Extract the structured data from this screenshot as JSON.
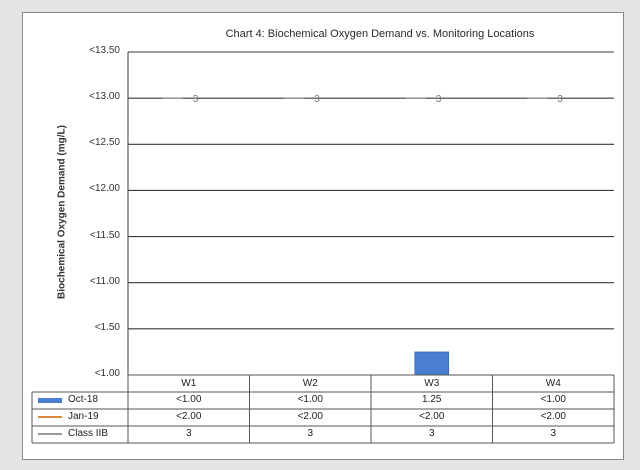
{
  "colors": {
    "oct": "#4a7fcf",
    "jan": "#d98a3a",
    "class": "#9a9a9a",
    "grid": "#3a3a3a"
  },
  "chart_data": {
    "type": "bar",
    "title": "Chart 4: Biochemical Oxygen Demand vs. Monitoring Locations",
    "ylabel": "Biochemical Oxygen Demand (mg/L)",
    "y_tick_labels": [
      "<13.50",
      "<13.00",
      "<12.50",
      "<12.00",
      "<11.50",
      "<11.00",
      "<1.50",
      "<1.00"
    ],
    "categories": [
      "W1",
      "W2",
      "W3",
      "W4"
    ],
    "series": [
      {
        "name": "Oct-18",
        "kind": "bar",
        "values": [
          null,
          null,
          1.25,
          null
        ],
        "labels": [
          "<1.00",
          "<1.00",
          "1.25",
          "<1.00"
        ]
      },
      {
        "name": "Jan-19",
        "kind": "line",
        "values": [
          null,
          null,
          null,
          null
        ],
        "labels": [
          "<2.00",
          "<2.00",
          "<2.00",
          "<2.00"
        ]
      },
      {
        "name": "Class IIB",
        "kind": "line",
        "values": [
          3,
          3,
          3,
          3
        ],
        "labels": [
          "3",
          "3",
          "3",
          "3"
        ]
      }
    ],
    "grid": true,
    "legend": "data-table"
  }
}
